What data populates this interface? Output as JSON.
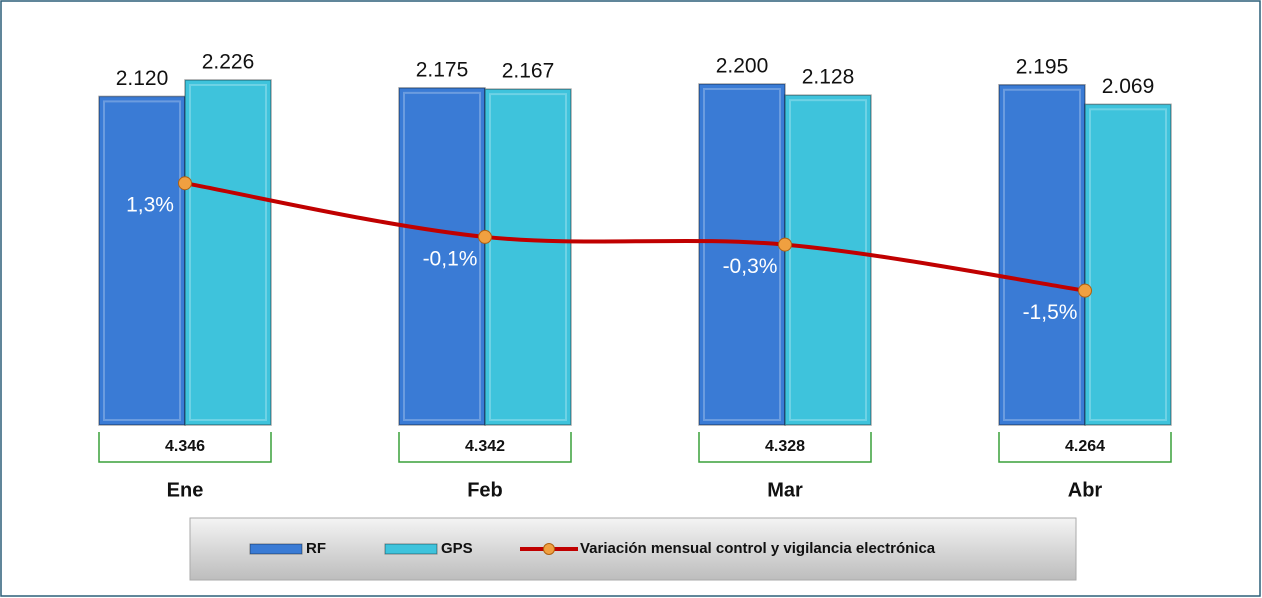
{
  "chart_data": {
    "type": "bar",
    "categories": [
      "Ene",
      "Feb",
      "Mar",
      "Abr"
    ],
    "series": [
      {
        "name": "RF",
        "color": "#3a7bd5",
        "values": [
          2120,
          2175,
          2200,
          2195
        ],
        "value_labels": [
          "2.120",
          "2.175",
          "2.200",
          "2.195"
        ]
      },
      {
        "name": "GPS",
        "color": "#3ec3dc",
        "values": [
          2226,
          2167,
          2128,
          2069
        ],
        "value_labels": [
          "2.226",
          "2.167",
          "2.128",
          "2.069"
        ]
      },
      {
        "name": "Variación mensual control y vigilancia electrónica",
        "type": "line",
        "axis": "y2",
        "color": "#c00000",
        "marker_color": "#f0a040",
        "values": [
          1.3,
          -0.1,
          -0.3,
          -1.5
        ],
        "value_labels": [
          "1,3%",
          "-0,1%",
          "-0,3%",
          "-1,5%"
        ]
      }
    ],
    "totals": [
      4346,
      4342,
      4328,
      4264
    ],
    "total_labels": [
      "4.346",
      "4.342",
      "4.328",
      "4.264"
    ],
    "total_box_color": "#3aa03a",
    "ylim": [
      0,
      2600
    ],
    "y2lim": [
      -5,
      5.5
    ],
    "legend": "bottom"
  }
}
